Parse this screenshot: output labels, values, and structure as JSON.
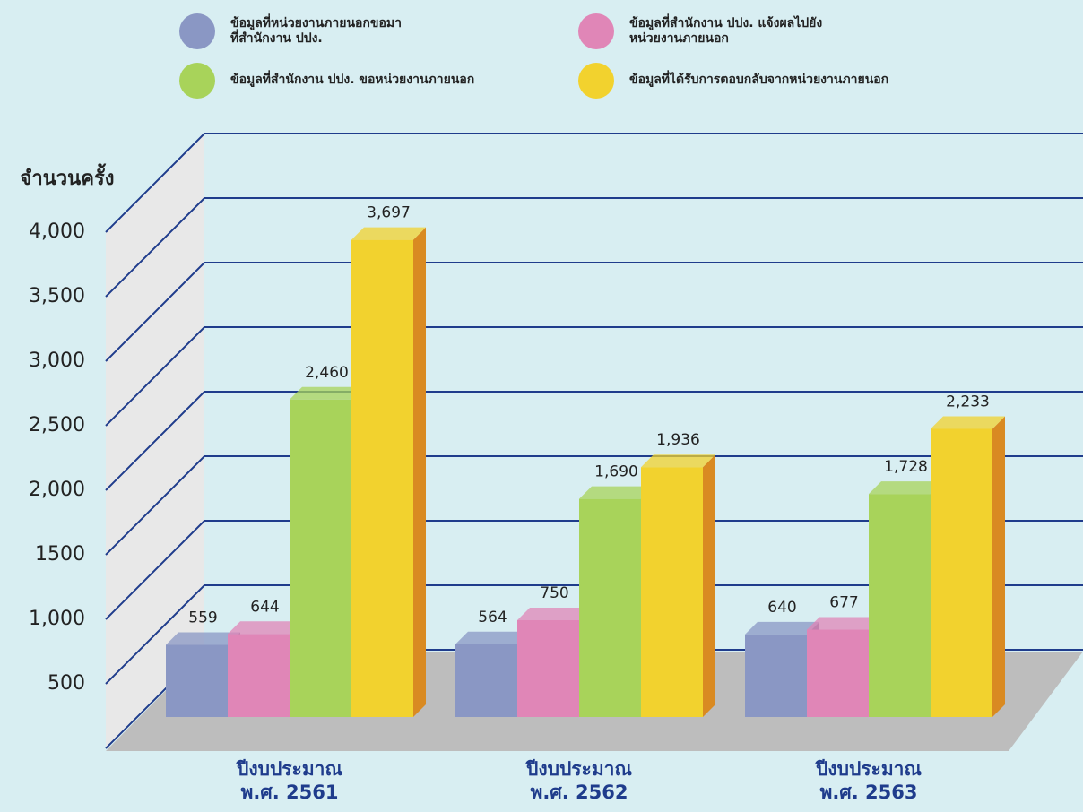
{
  "chart_data": {
    "type": "bar3d",
    "ylabel": "จำนวนครั้ง",
    "categories": [
      "ปีงบประมาณ\nพ.ศ. 2561",
      "ปีงบประมาณ\nพ.ศ. 2562",
      "ปีงบประมาณ\nพ.ศ. 2563"
    ],
    "series": [
      {
        "name": "ข้อมูลที่หน่วยงานภายนอกขอมา\nที่สำนักงาน ปปง.",
        "color": "#8a97c4",
        "values": [
          559,
          564,
          640
        ]
      },
      {
        "name": "ข้อมูลที่สำนักงาน ปปง. แจ้งผลไปยัง\nหน่วยงานภายนอก",
        "color": "#e086b7",
        "values": [
          644,
          750,
          677
        ]
      },
      {
        "name": "ข้อมูลที่สำนักงาน ปปง. ขอหน่วยงานภายนอก",
        "color": "#a8d35a",
        "values": [
          2460,
          1690,
          1728
        ],
        "value_labels": [
          "2,460",
          "1,690",
          "1,728"
        ]
      },
      {
        "name": "ข้อมูลที่ได้รับการตอบกลับจากหน่วยงานภายนอก",
        "color": "#f2d22e",
        "values": [
          3697,
          1936,
          2233
        ],
        "value_labels": [
          "3,697",
          "1,936",
          "2,233"
        ]
      }
    ],
    "ylim": [
      0,
      4000
    ],
    "yticks": [
      500,
      {
        "value": 1000,
        "label": "1,000"
      },
      1500,
      {
        "value": 2000,
        "label": "2,000"
      },
      {
        "value": 2500,
        "label": "2,500"
      },
      {
        "value": 3000,
        "label": "3,000"
      },
      {
        "value": 3500,
        "label": "3,500"
      },
      {
        "value": 4000,
        "label": "4,000"
      }
    ],
    "grid": true
  }
}
